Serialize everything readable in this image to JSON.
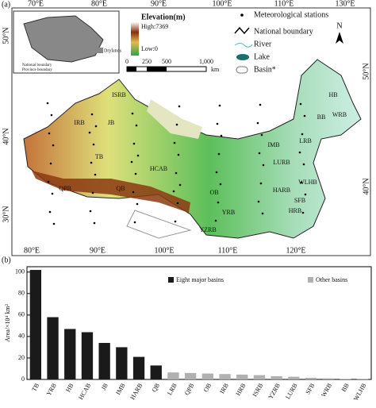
{
  "map": {
    "panel_label": "(a)",
    "legend_title": "Elevation(m)",
    "high_label": "High:7369",
    "low_label": "Low:0",
    "scale_labels": [
      "0",
      "250",
      "500",
      "1,000"
    ],
    "scale_unit": "km",
    "north": "N",
    "legend_items": [
      "Meteorological stations",
      "National boundary",
      "River",
      "Lake",
      "Basin*"
    ],
    "inset_labels": [
      "Drylands",
      "National boundary",
      "Province boundary"
    ],
    "top_lon": [
      "70°E",
      "80°E",
      "90°E",
      "100°E",
      "110°E",
      "130°E"
    ],
    "bottom_lon": [
      "80°E",
      "90°E",
      "100°E",
      "110°E",
      "120°E"
    ],
    "left_lat": [
      "50°N",
      "40°N",
      "30°N"
    ],
    "right_lat": [
      "50°N",
      "40°N"
    ],
    "basins": [
      "ISRB",
      "IRB",
      "JB",
      "TB",
      "HCAB",
      "QPB",
      "QB",
      "OB",
      "YRB",
      "YZRB",
      "IMB",
      "LRB",
      "LURB",
      "HARB",
      "WLHB",
      "SFB",
      "HRB",
      "HB",
      "BB",
      "WRB"
    ]
  },
  "chart_data": {
    "type": "bar",
    "panel_label": "(b)",
    "y_label": "Area/×10⁴ km²",
    "categories": [
      "TB",
      "YRB",
      "HB",
      "HCAB",
      "JB",
      "IMB",
      "HARB",
      "QB",
      "LRB",
      "QPB",
      "OB",
      "IRB",
      "HRB",
      "ISRB",
      "YZRB",
      "LURB",
      "SFB",
      "WRB",
      "BB",
      "WLHB"
    ],
    "series": [
      {
        "name": "Eight major basins",
        "color": "#1a1a1a",
        "values": [
          102,
          58,
          47,
          44,
          34,
          30,
          21,
          13,
          null,
          null,
          null,
          null,
          null,
          null,
          null,
          null,
          null,
          null,
          null,
          null
        ]
      },
      {
        "name": "Other basins",
        "color": "#b0b0b0",
        "values": [
          null,
          null,
          null,
          null,
          null,
          null,
          null,
          null,
          6.5,
          6,
          5.5,
          5,
          4.5,
          4,
          3,
          2.5,
          1.5,
          1,
          0.5,
          0.3
        ]
      }
    ],
    "ylim": [
      0,
      105
    ],
    "yticks": [
      0,
      20,
      40,
      60,
      80,
      100
    ]
  }
}
